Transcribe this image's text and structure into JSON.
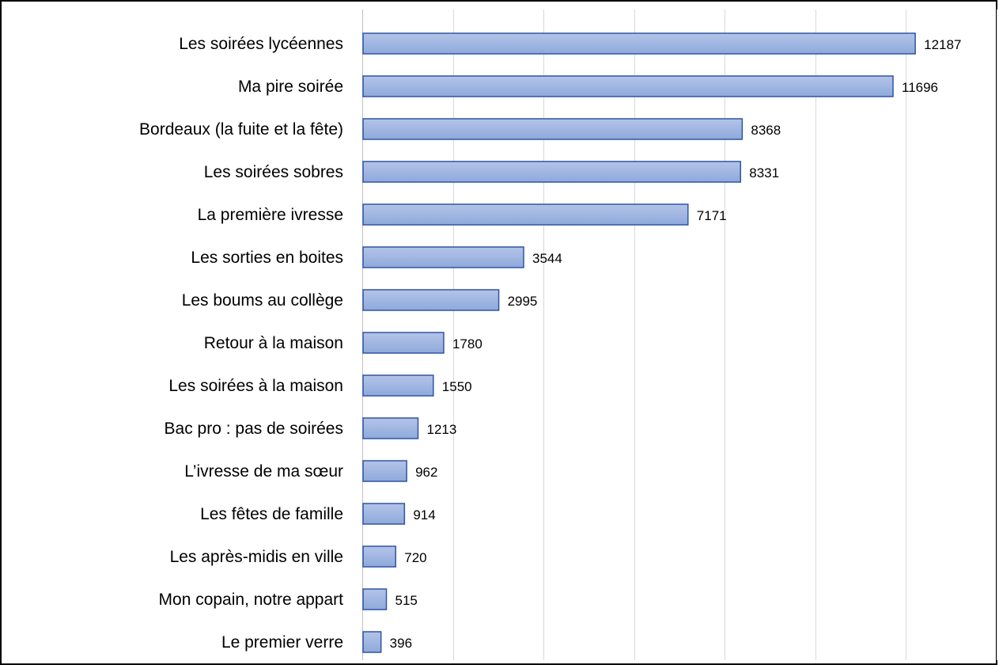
{
  "chart_data": {
    "type": "bar",
    "orientation": "horizontal",
    "categories": [
      "Les soirées lycéennes",
      "Ma pire soirée",
      "Bordeaux (la fuite et la fête)",
      "Les soirées sobres",
      "La première ivresse",
      "Les sorties en boites",
      "Les boums au collège",
      "Retour à la maison",
      "Les soirées à la maison",
      "Bac pro : pas de soirées",
      "L’ivresse de ma sœur",
      "Les fêtes de famille",
      "Les après-midis en ville",
      "Mon copain, notre appart",
      "Le premier verre"
    ],
    "values": [
      12187,
      11696,
      8368,
      8331,
      7171,
      3544,
      2995,
      1780,
      1550,
      1213,
      962,
      914,
      720,
      515,
      396
    ],
    "xlim": [
      0,
      14000
    ],
    "grid": true,
    "data_labels": true,
    "legend": "none",
    "colors": {
      "bar_fill_light": "#b4c4e8",
      "bar_fill_dark": "#8ea9db",
      "bar_stroke": "#2f55a4",
      "gridline": "#d9d9d9",
      "axis": "#bfbfbf",
      "frame": "#000000"
    }
  }
}
